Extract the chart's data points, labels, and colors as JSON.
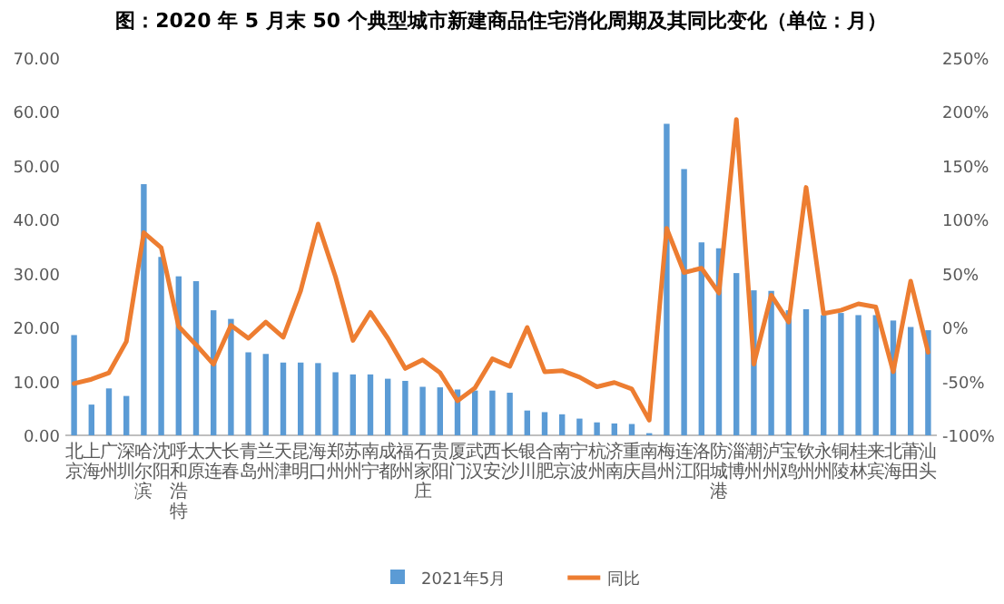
{
  "chart_data": {
    "type": "bar",
    "title": "图：2020 年 5 月末 50 个典型城市新建商品住宅消化周期及其同比变化（单位：月）",
    "categories": [
      "北京",
      "上海",
      "广州",
      "深圳",
      "哈尔滨",
      "沈阳",
      "呼和浩特",
      "太原",
      "大连",
      "长春",
      "青岛",
      "兰州",
      "天津",
      "昆明",
      "海口",
      "郑州",
      "苏州",
      "南宁",
      "成都",
      "福州",
      "石家庄",
      "贵阳",
      "厦门",
      "武汉",
      "西安",
      "长沙",
      "银川",
      "合肥",
      "南京",
      "宁波",
      "杭州",
      "济南",
      "重庆",
      "南昌",
      "梅州",
      "连江",
      "洛阳",
      "防城港",
      "淄博",
      "潮州",
      "泸州",
      "宝鸡",
      "钦州",
      "永州",
      "铜陵",
      "桂林",
      "来宾",
      "北海",
      "莆田",
      "汕头"
    ],
    "series": [
      {
        "name": "2021年5月",
        "color": "#5b9bd5",
        "values": [
          18.6,
          5.7,
          8.7,
          7.3,
          46.6,
          33.1,
          29.5,
          28.6,
          23.2,
          21.6,
          15.4,
          15.1,
          13.5,
          13.5,
          13.4,
          11.7,
          11.3,
          11.3,
          10.5,
          10.1,
          9.0,
          8.9,
          8.5,
          8.3,
          8.3,
          7.9,
          4.6,
          4.3,
          3.9,
          3.1,
          2.4,
          2.2,
          2.1,
          0.4,
          57.8,
          49.4,
          35.8,
          34.7,
          30.1,
          26.9,
          26.8,
          23.2,
          23.4,
          22.3,
          22.7,
          22.3,
          22.3,
          21.3,
          20.1,
          19.5
        ]
      },
      {
        "name": "同比",
        "type": "line",
        "axis": "y2",
        "color": "#ed7d31",
        "values": [
          -52,
          -48,
          -42,
          -13,
          88,
          74,
          1,
          -16,
          -34,
          2,
          -10,
          5,
          -9,
          34,
          96,
          47,
          -12,
          14,
          -10,
          -38,
          -30,
          -42,
          -68,
          -56,
          -29,
          -36,
          0,
          -41,
          -40,
          -46,
          -55,
          -51,
          -57,
          -86,
          92,
          51,
          55,
          32,
          193,
          -34,
          30,
          5,
          130,
          13,
          16,
          22,
          19,
          -41,
          43,
          -23
        ]
      }
    ],
    "ylim": [
      0,
      70
    ],
    "yticks": [
      {
        "value": 0,
        "label": "0.00"
      },
      {
        "value": 10,
        "label": "10.00"
      },
      {
        "value": 20,
        "label": "20.00"
      },
      {
        "value": 30,
        "label": "30.00"
      },
      {
        "value": 40,
        "label": "40.00"
      },
      {
        "value": 50,
        "label": "50.00"
      },
      {
        "value": 60,
        "label": "60.00"
      },
      {
        "value": 70,
        "label": "70.00"
      }
    ],
    "y2lim": [
      -100,
      250
    ],
    "y2ticks": [
      {
        "value": -100,
        "label": "-100%"
      },
      {
        "value": -50,
        "label": "-50%"
      },
      {
        "value": 0,
        "label": "0%"
      },
      {
        "value": 50,
        "label": "50%"
      },
      {
        "value": 100,
        "label": "100%"
      },
      {
        "value": 150,
        "label": "150%"
      },
      {
        "value": 200,
        "label": "200%"
      },
      {
        "value": 250,
        "label": "250%"
      }
    ],
    "grid": false,
    "legend": "bottom"
  }
}
